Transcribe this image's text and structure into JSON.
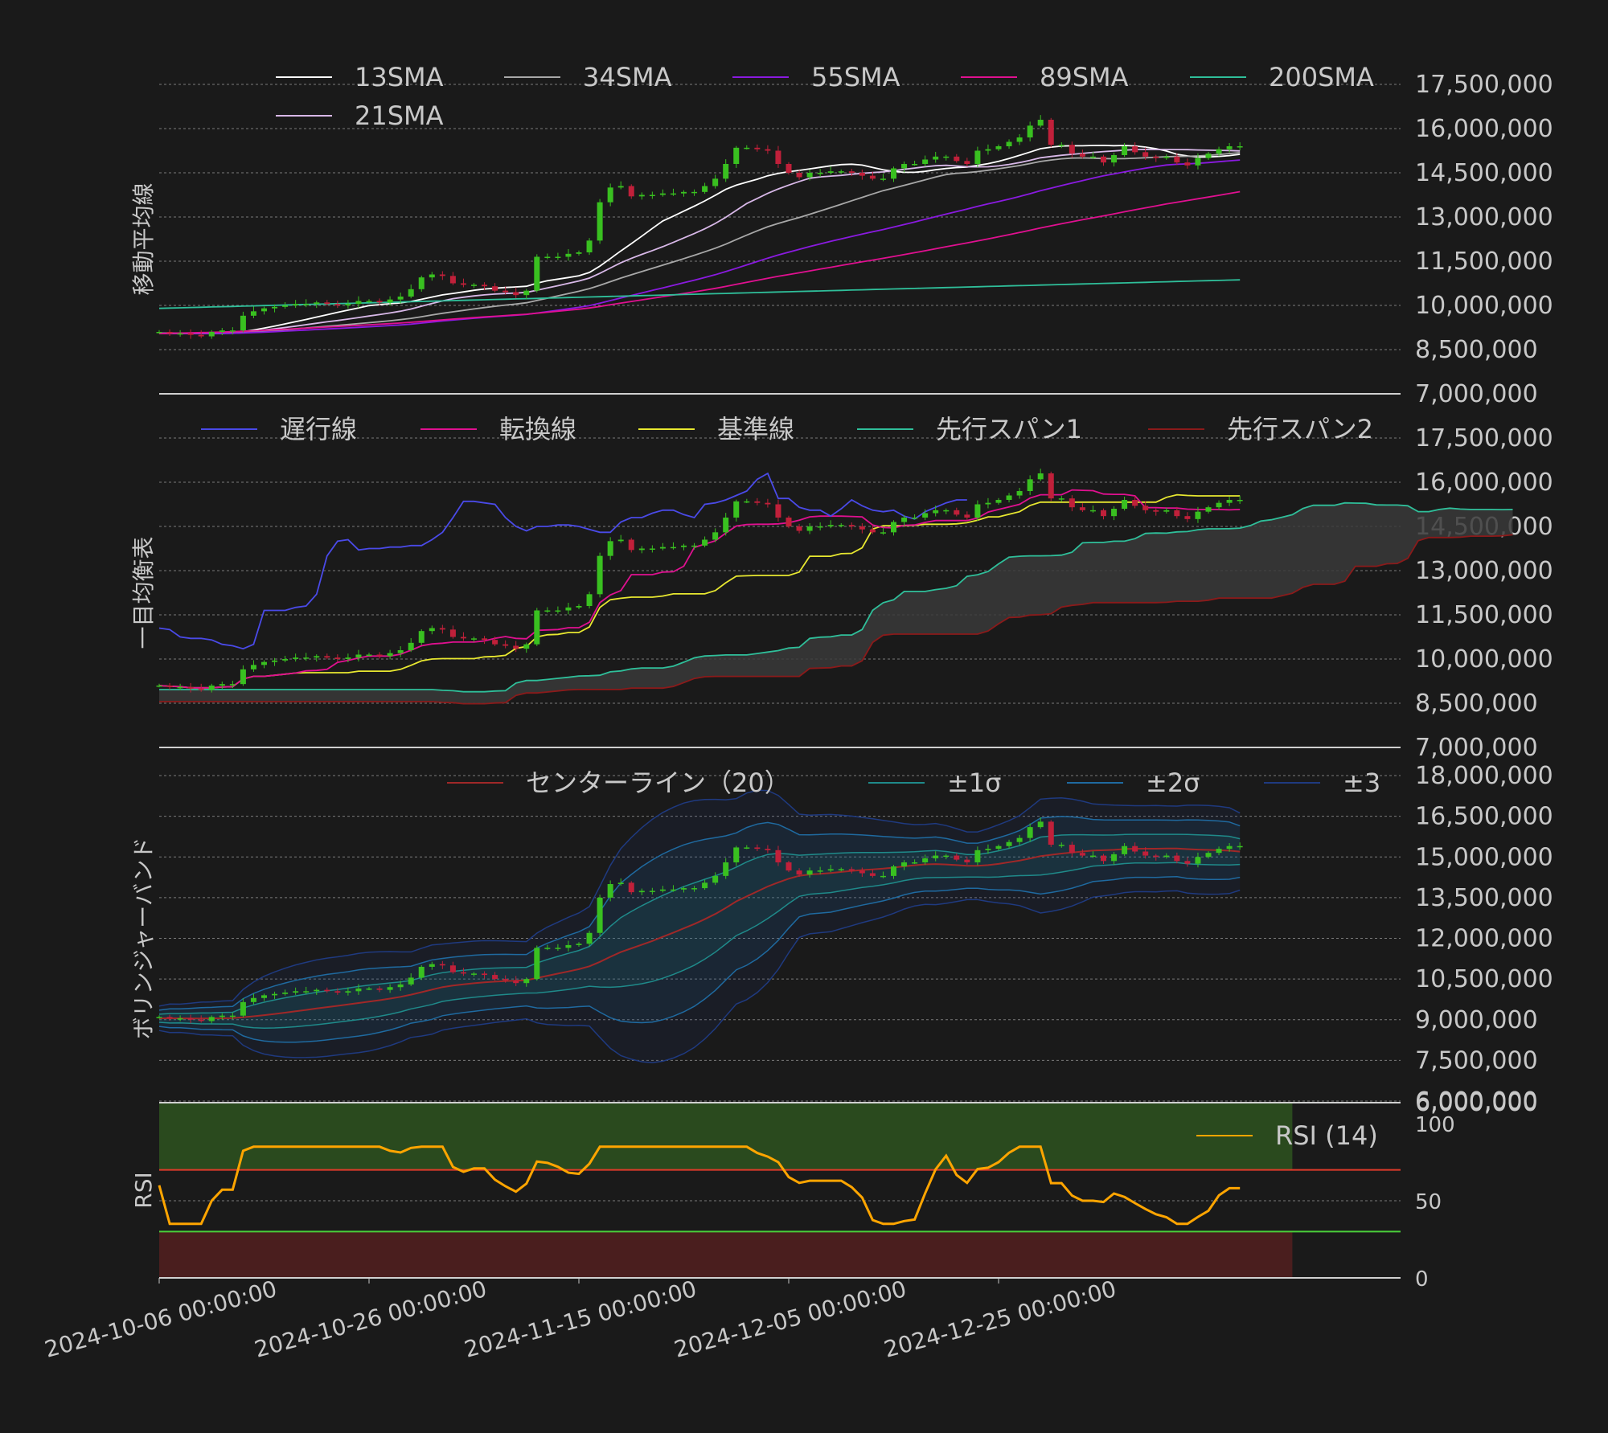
{
  "chart_data": [
    {
      "type": "candlestick",
      "ylabel": "移動平均線",
      "ylim": [
        7000000,
        17500000
      ],
      "yticks": [
        "7,000,000",
        "8,500,000",
        "10,000,000",
        "11,500,000",
        "13,000,000",
        "14,500,000",
        "16,000,000",
        "17,500,000"
      ],
      "series": [
        {
          "name": "13SMA",
          "color": "#ffffff"
        },
        {
          "name": "21SMA",
          "color": "#d8b8e8"
        },
        {
          "name": "34SMA",
          "color": "#a8a8a8"
        },
        {
          "name": "55SMA",
          "color": "#8a1ae0"
        },
        {
          "name": "89SMA",
          "color": "#e01090"
        },
        {
          "name": "200SMA",
          "color": "#2fbf9a"
        }
      ],
      "approx_last_values": {
        "13SMA": 15150000,
        "21SMA": 15250000,
        "34SMA": 15200000,
        "55SMA": 14950000,
        "89SMA": 13250000,
        "200SMA": 11000000
      }
    },
    {
      "type": "candlestick",
      "ylabel": "一目均衡表",
      "ylim": [
        7000000,
        17500000
      ],
      "yticks": [
        "7,000,000",
        "8,500,000",
        "10,000,000",
        "11,500,000",
        "13,000,000",
        "14,500,000",
        "16,000,000",
        "17,500,000"
      ],
      "series": [
        {
          "name": "遅行線",
          "color": "#4a4ae8"
        },
        {
          "name": "転換線",
          "color": "#e01090"
        },
        {
          "name": "基準線",
          "color": "#e8e830"
        },
        {
          "name": "先行スパン1",
          "color": "#2fbf9a"
        },
        {
          "name": "先行スパン2",
          "color": "#8b1a1a"
        }
      ]
    },
    {
      "type": "candlestick",
      "ylabel": "ボリンジャーバンド",
      "ylim": [
        6000000,
        18000000
      ],
      "yticks": [
        "6,000,000",
        "7,500,000",
        "9,000,000",
        "10,500,000",
        "12,000,000",
        "13,500,000",
        "15,000,000",
        "16,500,000",
        "18,000,000"
      ],
      "series": [
        {
          "name": "センターライン（20）",
          "color": "#a02828"
        },
        {
          "name": "±1σ",
          "color": "#1f8a8a"
        },
        {
          "name": "±2σ",
          "color": "#1f6aa0"
        },
        {
          "name": "±3",
          "color": "#1f3a80"
        }
      ]
    },
    {
      "type": "line",
      "ylabel": "RSI",
      "ylim": [
        0,
        100
      ],
      "yticks": [
        "0",
        "50",
        "100"
      ],
      "series": [
        {
          "name": "RSI (14)",
          "color": "#ffa500"
        }
      ],
      "overbought": 70,
      "oversold": 30
    }
  ],
  "price": {
    "open_start": 9100000,
    "closes": [
      9100000,
      9050000,
      9050000,
      9000000,
      8950000,
      9100000,
      9150000,
      9150000,
      9650000,
      9800000,
      9900000,
      9950000,
      10000000,
      10050000,
      10050000,
      10100000,
      10050000,
      10000000,
      10050000,
      10150000,
      10150000,
      10100000,
      10200000,
      10300000,
      10550000,
      10950000,
      11050000,
      11000000,
      10750000,
      10700000,
      10700000,
      10650000,
      10500000,
      10450000,
      10350000,
      10500000,
      11650000,
      11650000,
      11650000,
      11750000,
      11800000,
      12200000,
      13500000,
      14000000,
      14050000,
      13700000,
      13750000,
      13750000,
      13800000,
      13800000,
      13850000,
      13850000,
      14050000,
      14300000,
      14800000,
      15350000,
      15350000,
      15300000,
      15250000,
      14800000,
      14500000,
      14350000,
      14500000,
      14500000,
      14550000,
      14550000,
      14500000,
      14400000,
      14300000,
      14300000,
      14650000,
      14800000,
      14800000,
      14950000,
      15050000,
      15050000,
      14900000,
      14800000,
      15250000,
      15300000,
      15400000,
      15550000,
      15700000,
      16100000,
      16300000,
      15450000,
      15450000,
      15150000,
      15050000,
      15050000,
      14850000,
      15100000,
      15400000,
      15200000,
      15050000,
      15000000,
      15050000,
      14850000,
      14750000,
      15000000,
      15150000,
      15300000,
      15400000,
      15400000
    ],
    "n_future": 26
  },
  "x_ticks": {
    "labels": [
      "2024-10-06 00:00:00",
      "2024-10-26 00:00:00",
      "2024-11-15 00:00:00",
      "2024-12-05 00:00:00",
      "2024-12-25 00:00:00"
    ],
    "indices": [
      0,
      20,
      40,
      60,
      80
    ]
  },
  "colors": {
    "background": "#1a1a1a",
    "text": "#c8c8c8",
    "grid": "#7a7a7a",
    "up": "#39c020",
    "down": "#c0203a",
    "kumo": "#3a3a3a",
    "overbought_fill": "#2a4a1e",
    "oversold_fill": "#4a1e1e",
    "overbought_line": "#e03a2a",
    "oversold_line": "#4ad03a"
  }
}
